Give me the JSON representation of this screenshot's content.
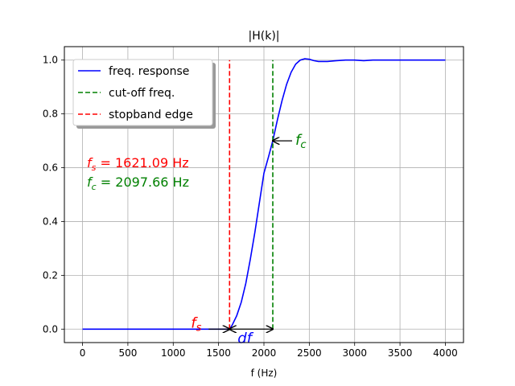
{
  "chart_data": {
    "type": "line",
    "title": "|H(k)|",
    "xlabel": "f (Hz)",
    "ylabel": "",
    "xlim": [
      -200,
      4200
    ],
    "ylim": [
      -0.05,
      1.05
    ],
    "xticks": [
      0,
      500,
      1000,
      1500,
      2000,
      2500,
      3000,
      3500,
      4000
    ],
    "yticks": [
      0.0,
      0.2,
      0.4,
      0.6,
      0.8,
      1.0
    ],
    "xtick_labels": [
      "0",
      "500",
      "1000",
      "1500",
      "2000",
      "2500",
      "3000",
      "3500",
      "4000"
    ],
    "ytick_labels": [
      "0.0",
      "0.2",
      "0.4",
      "0.6",
      "0.8",
      "1.0"
    ],
    "grid": true,
    "legend_position": "top-left",
    "series": [
      {
        "name": "freq. response",
        "color": "#0000ff",
        "style": "solid",
        "x": [
          0,
          500,
          1000,
          1300,
          1500,
          1550,
          1621.09,
          1650,
          1700,
          1750,
          1800,
          1850,
          1900,
          1950,
          2000,
          2050,
          2097.66,
          2150,
          2200,
          2250,
          2300,
          2350,
          2400,
          2450,
          2500,
          2550,
          2600,
          2700,
          2800,
          2900,
          3000,
          3100,
          3200,
          3400,
          3600,
          3800,
          4000
        ],
        "y": [
          0,
          0,
          0,
          0,
          0,
          0.0,
          0.0,
          0.015,
          0.05,
          0.1,
          0.17,
          0.26,
          0.36,
          0.47,
          0.58,
          0.64,
          0.7,
          0.78,
          0.85,
          0.91,
          0.955,
          0.985,
          1.0,
          1.005,
          1.003,
          0.998,
          0.995,
          0.995,
          0.998,
          1.0,
          1.0,
          0.998,
          1.0,
          1.0,
          1.0,
          1.0,
          1.0
        ]
      },
      {
        "name": "cut-off freq.",
        "color": "#008000",
        "style": "dashed",
        "x": [
          2097.66,
          2097.66
        ],
        "y": [
          0,
          1
        ]
      },
      {
        "name": "stopband edge",
        "color": "#ff0000",
        "style": "dashed",
        "x": [
          1621.09,
          1621.09
        ],
        "y": [
          0,
          1
        ]
      }
    ],
    "annotations": {
      "fs_text": "f_s = 1621.09 Hz",
      "fc_text": "f_c = 2097.66 Hz",
      "fs_label": "f_s",
      "fc_label": "f_c",
      "df_label": "df",
      "fs_color": "#ff0000",
      "fc_color": "#008000",
      "df_color": "#0000ff"
    }
  }
}
